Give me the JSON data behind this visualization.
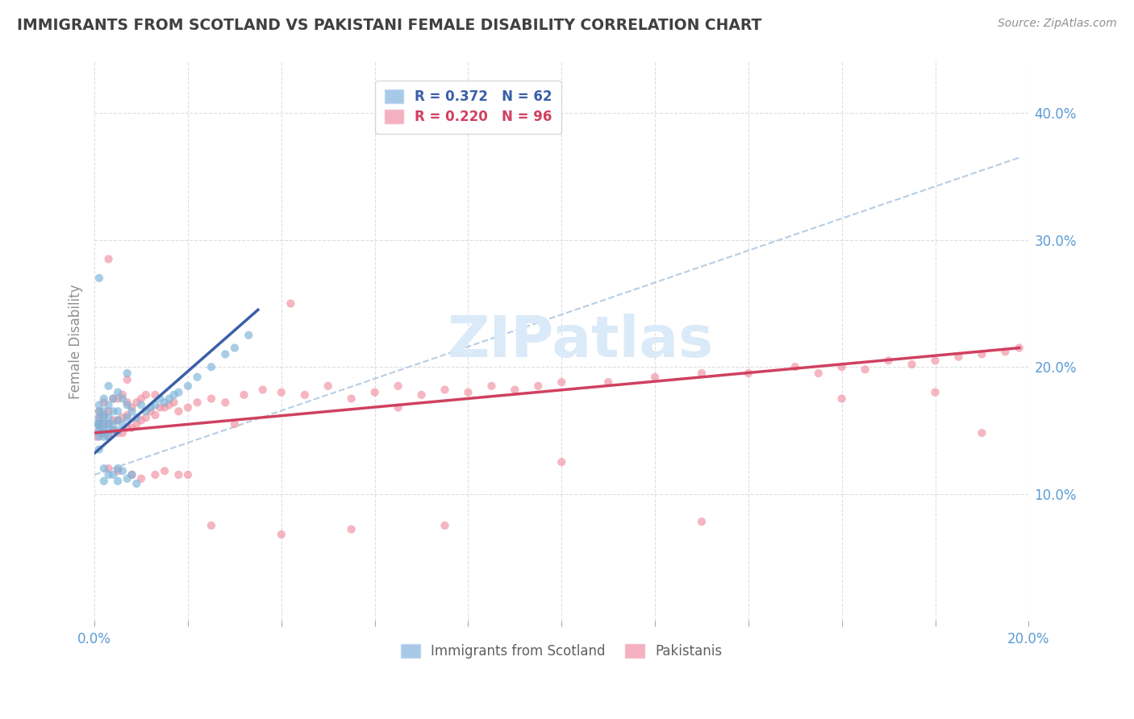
{
  "title": "IMMIGRANTS FROM SCOTLAND VS PAKISTANI FEMALE DISABILITY CORRELATION CHART",
  "source": "Source: ZipAtlas.com",
  "ylabel": "Female Disability",
  "legend_items": [
    {
      "label": "R = 0.372   N = 62"
    },
    {
      "label": "R = 0.220   N = 96"
    }
  ],
  "legend_bottom": [
    {
      "label": "Immigrants from Scotland"
    },
    {
      "label": "Pakistanis"
    }
  ],
  "blue_scatter_x": [
    0.0005,
    0.001,
    0.001,
    0.001,
    0.001,
    0.001,
    0.001,
    0.0015,
    0.002,
    0.002,
    0.002,
    0.002,
    0.002,
    0.002,
    0.003,
    0.003,
    0.003,
    0.003,
    0.003,
    0.003,
    0.004,
    0.004,
    0.004,
    0.004,
    0.005,
    0.005,
    0.005,
    0.005,
    0.006,
    0.006,
    0.007,
    0.007,
    0.007,
    0.008,
    0.009,
    0.01,
    0.011,
    0.012,
    0.013,
    0.014,
    0.015,
    0.016,
    0.017,
    0.018,
    0.02,
    0.022,
    0.025,
    0.028,
    0.03,
    0.033,
    0.001,
    0.001,
    0.002,
    0.002,
    0.003,
    0.004,
    0.005,
    0.005,
    0.006,
    0.007,
    0.008,
    0.009
  ],
  "blue_scatter_y": [
    0.155,
    0.145,
    0.15,
    0.155,
    0.16,
    0.165,
    0.17,
    0.148,
    0.145,
    0.15,
    0.155,
    0.16,
    0.165,
    0.175,
    0.145,
    0.15,
    0.155,
    0.16,
    0.17,
    0.185,
    0.15,
    0.155,
    0.165,
    0.175,
    0.15,
    0.158,
    0.165,
    0.18,
    0.155,
    0.175,
    0.16,
    0.17,
    0.195,
    0.165,
    0.16,
    0.17,
    0.165,
    0.168,
    0.17,
    0.175,
    0.172,
    0.175,
    0.178,
    0.18,
    0.185,
    0.192,
    0.2,
    0.21,
    0.215,
    0.225,
    0.27,
    0.135,
    0.12,
    0.11,
    0.115,
    0.115,
    0.12,
    0.11,
    0.118,
    0.112,
    0.115,
    0.108
  ],
  "pink_scatter_x": [
    0.0005,
    0.001,
    0.001,
    0.001,
    0.001,
    0.002,
    0.002,
    0.002,
    0.002,
    0.003,
    0.003,
    0.003,
    0.003,
    0.004,
    0.004,
    0.004,
    0.005,
    0.005,
    0.005,
    0.006,
    0.006,
    0.006,
    0.007,
    0.007,
    0.007,
    0.007,
    0.008,
    0.008,
    0.009,
    0.009,
    0.01,
    0.01,
    0.011,
    0.011,
    0.012,
    0.013,
    0.013,
    0.014,
    0.015,
    0.016,
    0.017,
    0.018,
    0.02,
    0.022,
    0.025,
    0.028,
    0.032,
    0.036,
    0.04,
    0.045,
    0.05,
    0.055,
    0.06,
    0.065,
    0.07,
    0.075,
    0.08,
    0.085,
    0.09,
    0.095,
    0.1,
    0.11,
    0.12,
    0.13,
    0.14,
    0.15,
    0.155,
    0.16,
    0.165,
    0.17,
    0.175,
    0.18,
    0.185,
    0.19,
    0.195,
    0.198,
    0.003,
    0.005,
    0.008,
    0.01,
    0.013,
    0.015,
    0.018,
    0.02,
    0.025,
    0.03,
    0.04,
    0.055,
    0.075,
    0.1,
    0.13,
    0.16,
    0.18,
    0.19,
    0.042,
    0.065
  ],
  "pink_scatter_y": [
    0.145,
    0.15,
    0.155,
    0.16,
    0.165,
    0.148,
    0.155,
    0.162,
    0.172,
    0.145,
    0.155,
    0.165,
    0.285,
    0.15,
    0.158,
    0.175,
    0.148,
    0.158,
    0.175,
    0.148,
    0.16,
    0.178,
    0.152,
    0.162,
    0.172,
    0.19,
    0.152,
    0.168,
    0.155,
    0.172,
    0.158,
    0.175,
    0.16,
    0.178,
    0.165,
    0.162,
    0.178,
    0.168,
    0.168,
    0.17,
    0.172,
    0.165,
    0.168,
    0.172,
    0.175,
    0.172,
    0.178,
    0.182,
    0.18,
    0.178,
    0.185,
    0.175,
    0.18,
    0.185,
    0.178,
    0.182,
    0.18,
    0.185,
    0.182,
    0.185,
    0.188,
    0.188,
    0.192,
    0.195,
    0.195,
    0.2,
    0.195,
    0.2,
    0.198,
    0.205,
    0.202,
    0.205,
    0.208,
    0.21,
    0.212,
    0.215,
    0.12,
    0.118,
    0.115,
    0.112,
    0.115,
    0.118,
    0.115,
    0.115,
    0.075,
    0.155,
    0.068,
    0.072,
    0.075,
    0.125,
    0.078,
    0.175,
    0.18,
    0.148,
    0.25,
    0.168
  ],
  "blue_line_x": [
    0.0,
    0.035
  ],
  "blue_line_y": [
    0.132,
    0.245
  ],
  "pink_line_x": [
    0.0,
    0.198
  ],
  "pink_line_y": [
    0.148,
    0.215
  ],
  "diag_line_x": [
    0.0,
    0.198
  ],
  "diag_line_y": [
    0.115,
    0.365
  ],
  "xlim": [
    0.0,
    0.2
  ],
  "ylim": [
    0.0,
    0.44
  ],
  "yticks": [
    0.1,
    0.2,
    0.3,
    0.4
  ],
  "ytick_labels": [
    "10.0%",
    "20.0%",
    "30.0%",
    "40.0%"
  ],
  "scatter_color_blue": "#7ab3d9",
  "scatter_color_pink": "#f090a0",
  "regression_color_blue": "#3a5fa8",
  "regression_color_pink": "#d04060",
  "diag_color": "#b0c8e0",
  "bg_color": "#ffffff",
  "grid_color": "#c8c8c8",
  "title_color": "#404040",
  "axis_label_color": "#5b9bd5",
  "watermark_color": "#daeaf8",
  "watermark_text": "ZIPatlas",
  "scatter_size": 55,
  "scatter_alpha": 0.65,
  "legend_handle_color_blue": "#a8c8e8",
  "legend_handle_color_pink": "#f4b0c0",
  "legend_text_color_blue": "#3a5fa8",
  "legend_text_color_pink": "#d04060",
  "bottom_legend_color": "#606060"
}
